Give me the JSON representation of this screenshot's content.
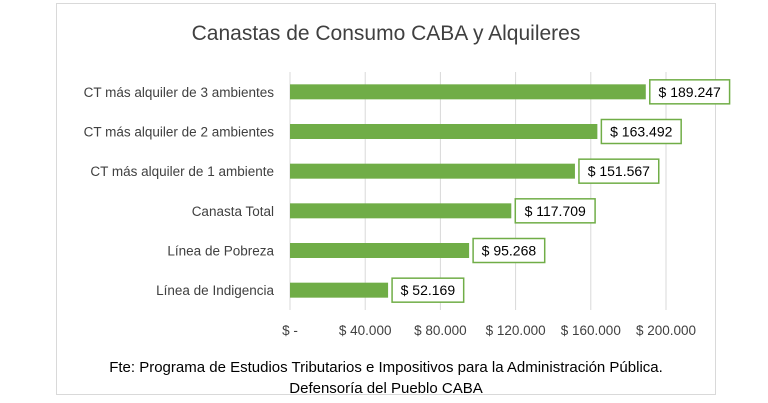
{
  "chart_data": {
    "type": "bar",
    "orientation": "horizontal",
    "title": "Canastas de Consumo CABA y Alquileres",
    "categories": [
      "CT más alquiler de 3 ambientes",
      "CT más alquiler de 2 ambientes",
      "CT más alquiler de 1 ambiente",
      "Canasta Total",
      "Línea de Pobreza",
      "Línea de Indigencia"
    ],
    "values": [
      189247,
      163492,
      151567,
      117709,
      95268,
      52169
    ],
    "data_labels": [
      "$ 189.247",
      "$ 163.492",
      "$ 151.567",
      "$ 117.709",
      "$ 95.268",
      "$ 52.169"
    ],
    "xlim": [
      0,
      200000
    ],
    "x_ticks": [
      0,
      40000,
      80000,
      120000,
      160000,
      200000
    ],
    "x_tick_labels": [
      "$ -",
      "$ 40.000",
      "$ 80.000",
      "$ 120.000",
      "$ 160.000",
      "$ 200.000"
    ],
    "grid": "vertical",
    "bar_color": "#70ad47",
    "label_border_color": "#70ad47",
    "grid_color": "#d9d9d9"
  },
  "footnote": {
    "line1": "Fte: Programa de Estudios Tributarios e Impositivos para la Administración Pública.",
    "line2": "Defensoría del Pueblo CABA"
  }
}
